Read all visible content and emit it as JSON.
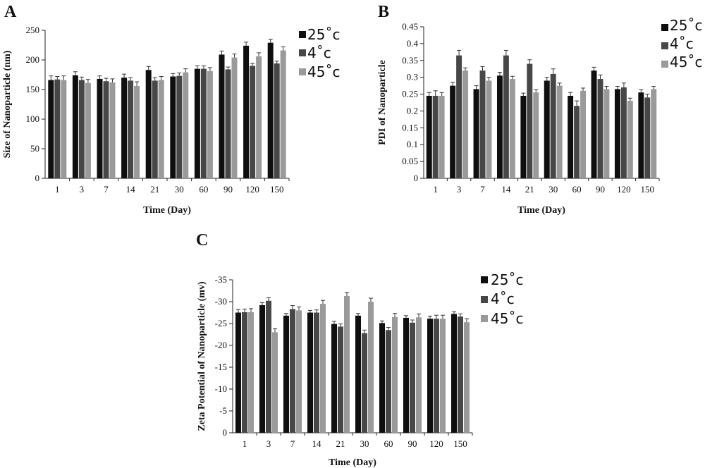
{
  "panels": [
    {
      "letter": "A"
    },
    {
      "letter": "B"
    },
    {
      "letter": "C"
    }
  ],
  "legend": [
    {
      "label": "25˚c",
      "color": "#0f0f0f"
    },
    {
      "label": "4˚c",
      "color": "#474747"
    },
    {
      "label": "45˚c",
      "color": "#9a9a9a"
    }
  ],
  "chart_data": [
    {
      "type": "bar",
      "panel": "A",
      "xlabel": "Time (Day)",
      "ylabel": "Size of Nanoparticle (nm)",
      "categories": [
        "1",
        "3",
        "7",
        "14",
        "21",
        "30",
        "60",
        "90",
        "120",
        "150"
      ],
      "ylim": [
        0,
        250
      ],
      "yticks": [
        0,
        50,
        100,
        150,
        200,
        250
      ],
      "series": [
        {
          "name": "25˚c",
          "values": [
            166,
            174,
            168,
            170,
            183,
            172,
            185,
            209,
            224,
            229
          ],
          "errors": [
            7,
            6,
            5,
            6,
            6,
            5,
            5,
            6,
            6,
            6
          ]
        },
        {
          "name": "4˚c",
          "values": [
            167,
            166,
            164,
            165,
            165,
            173,
            185,
            184,
            190,
            194
          ],
          "errors": [
            5,
            5,
            5,
            5,
            5,
            5,
            5,
            4,
            4,
            4
          ]
        },
        {
          "name": "45˚c",
          "values": [
            166,
            161,
            162,
            156,
            166,
            179,
            181,
            204,
            206,
            216
          ],
          "errors": [
            7,
            6,
            6,
            7,
            6,
            6,
            6,
            6,
            6,
            6
          ]
        }
      ]
    },
    {
      "type": "bar",
      "panel": "B",
      "xlabel": "Time (Day)",
      "ylabel": "PDI of Nanoparticle",
      "categories": [
        "1",
        "3",
        "7",
        "14",
        "21",
        "30",
        "60",
        "90",
        "120",
        "150"
      ],
      "ylim": [
        0,
        0.45
      ],
      "yticks": [
        0,
        0.05,
        0.1,
        0.15,
        0.2,
        0.25,
        0.3,
        0.35,
        0.4,
        0.45
      ],
      "series": [
        {
          "name": "25˚c",
          "values": [
            0.245,
            0.275,
            0.265,
            0.305,
            0.245,
            0.29,
            0.245,
            0.32,
            0.265,
            0.255
          ],
          "errors": [
            0.01,
            0.01,
            0.01,
            0.01,
            0.008,
            0.01,
            0.01,
            0.01,
            0.008,
            0.008
          ]
        },
        {
          "name": "4˚c",
          "values": [
            0.245,
            0.365,
            0.32,
            0.365,
            0.34,
            0.31,
            0.215,
            0.295,
            0.27,
            0.24
          ],
          "errors": [
            0.015,
            0.015,
            0.012,
            0.015,
            0.012,
            0.015,
            0.015,
            0.012,
            0.013,
            0.01
          ]
        },
        {
          "name": "45˚c",
          "values": [
            0.245,
            0.32,
            0.29,
            0.295,
            0.255,
            0.275,
            0.26,
            0.265,
            0.23,
            0.265
          ],
          "errors": [
            0.01,
            0.008,
            0.01,
            0.008,
            0.008,
            0.008,
            0.008,
            0.008,
            0.008,
            0.008
          ]
        }
      ]
    },
    {
      "type": "bar",
      "panel": "C",
      "xlabel": "Time (Day)",
      "ylabel": "Zeta Potential of Nanoparticle (mv)",
      "categories": [
        "1",
        "3",
        "7",
        "14",
        "21",
        "30",
        "60",
        "90",
        "120",
        "150"
      ],
      "ylim": [
        0,
        -35
      ],
      "ytick_labels": [
        "0",
        "-5",
        "-10",
        "-15",
        "-20",
        "-25",
        "-30",
        "-35"
      ],
      "series": [
        {
          "name": "25˚c",
          "values": [
            -27.5,
            -29.2,
            -26.8,
            -27.5,
            -24.9,
            -26.8,
            -25.1,
            -26.3,
            -26.1,
            -27.2
          ],
          "errors": [
            0.7,
            0.6,
            0.5,
            0.5,
            0.6,
            0.5,
            0.5,
            0.5,
            0.6,
            0.5
          ]
        },
        {
          "name": "4˚c",
          "values": [
            -27.6,
            -30.2,
            -28.3,
            -27.5,
            -24.3,
            -22.8,
            -23.5,
            -25.2,
            -26.1,
            -26.6
          ],
          "errors": [
            0.7,
            0.7,
            0.8,
            0.6,
            0.6,
            0.7,
            0.6,
            0.6,
            0.8,
            0.6
          ]
        },
        {
          "name": "45˚c",
          "values": [
            -27.6,
            -23.0,
            -28.0,
            -29.5,
            -31.3,
            -30.0,
            -26.5,
            -26.4,
            -26.1,
            -25.3
          ],
          "errors": [
            0.8,
            0.8,
            0.8,
            0.8,
            0.8,
            0.8,
            0.8,
            0.8,
            0.8,
            0.8
          ]
        }
      ]
    }
  ]
}
